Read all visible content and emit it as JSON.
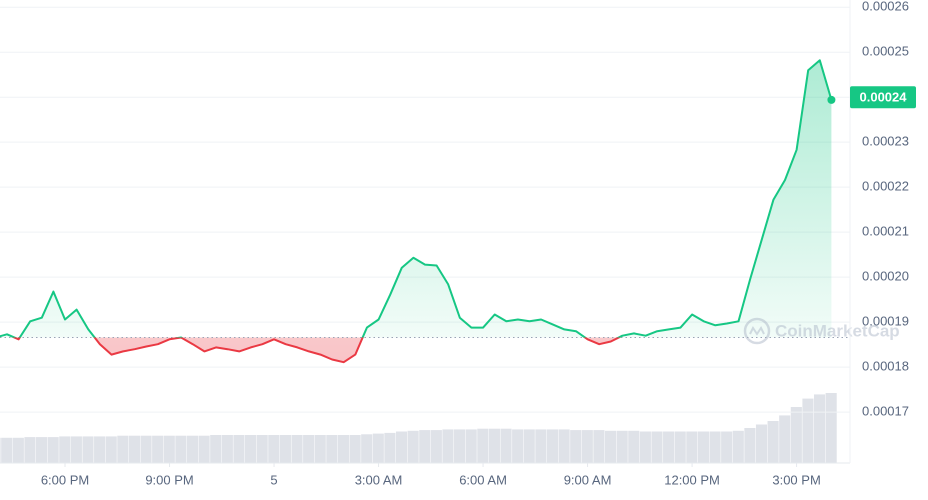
{
  "chart_data": {
    "type": "line",
    "baseline": 0.0001866,
    "current_price": 0.00024,
    "watermark": "CoinMarketCap",
    "up_color": "#16c784",
    "down_color": "#ea3943",
    "volume_color": "#dfe2e8",
    "ylim": [
      0.0001587,
      0.0002616
    ],
    "yticks": [
      0.00017,
      0.00018,
      0.00019,
      {
        "value": 0.0002,
        "label": "0.00020"
      },
      0.00021,
      0.00022,
      0.00023,
      0.00024,
      0.00025,
      0.00026
    ],
    "xlim": [
      0.4,
      73.6
    ],
    "xticks": [
      {
        "value": 6,
        "label": "6:00 PM"
      },
      {
        "value": 15,
        "label": "9:00 PM"
      },
      {
        "value": 24,
        "label": "5"
      },
      {
        "value": 33,
        "label": "3:00 AM"
      },
      {
        "value": 42,
        "label": "6:00 AM"
      },
      {
        "value": 51,
        "label": "9:00 AM"
      },
      {
        "value": 60,
        "label": "12:00 PM"
      },
      {
        "value": 69,
        "label": "3:00 PM"
      }
    ],
    "grid": true,
    "values": [
      0.0001866,
      0.0001873,
      0.0001862,
      0.0001902,
      0.000191,
      0.0001968,
      0.0001906,
      0.0001928,
      0.0001884,
      0.0001851,
      0.0001828,
      0.0001835,
      0.000184,
      0.0001846,
      0.0001851,
      0.0001862,
      0.0001866,
      0.0001851,
      0.0001835,
      0.0001844,
      0.000184,
      0.0001835,
      0.0001844,
      0.0001851,
      0.0001862,
      0.0001851,
      0.0001844,
      0.0001835,
      0.0001828,
      0.0001817,
      0.0001811,
      0.0001828,
      0.0001888,
      0.0001906,
      0.0001961,
      0.0002021,
      0.0002043,
      0.0002028,
      0.0002026,
      0.0001984,
      0.000191,
      0.0001888,
      0.0001888,
      0.0001917,
      0.0001902,
      0.0001906,
      0.0001902,
      0.0001906,
      0.0001895,
      0.0001884,
      0.000188,
      0.0001862,
      0.0001851,
      0.0001857,
      0.000187,
      0.0001875,
      0.000187,
      0.000188,
      0.0001884,
      0.0001888,
      0.0001917,
      0.0001902,
      0.0001893,
      0.0001897,
      0.0001902,
      0.0001995,
      0.0002083,
      0.0002172,
      0.0002216,
      0.0002283,
      0.000246,
      0.0002482,
      0.0002394
    ],
    "volume": [
      36,
      36,
      36,
      37,
      37,
      37,
      38,
      38,
      38,
      38,
      38,
      39,
      39,
      39,
      39,
      39,
      39,
      39,
      39,
      40,
      40,
      40,
      40,
      40,
      40,
      40,
      40,
      40,
      40,
      40,
      40,
      40,
      41,
      42,
      43,
      45,
      46,
      47,
      47,
      48,
      48,
      48,
      49,
      49,
      49,
      48,
      48,
      48,
      48,
      48,
      47,
      47,
      47,
      46,
      46,
      46,
      45,
      45,
      45,
      45,
      45,
      45,
      45,
      45,
      46,
      50,
      55,
      60,
      68,
      80,
      92,
      98,
      100
    ]
  }
}
